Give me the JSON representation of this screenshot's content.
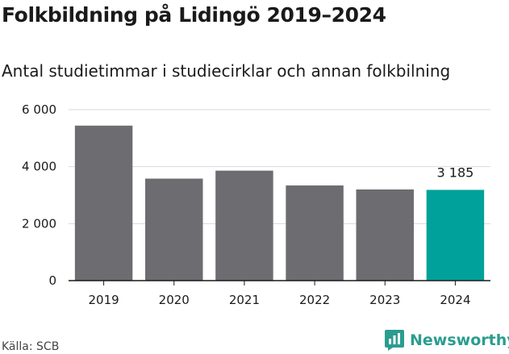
{
  "title": "Folkbildning på Lidingö 2019–2024",
  "subtitle": "Antal studietimmar i studiecirklar och annan folkbilning",
  "source": "Källa: SCB",
  "brand": {
    "name": "Newsworthy",
    "icon": "newsworthy-logo-icon"
  },
  "colors": {
    "bar": "#6d6c71",
    "highlight": "#00a19a",
    "grid": "#d9d9d9",
    "axis": "#1a1a1a"
  },
  "chart_data": {
    "type": "bar",
    "categories": [
      "2019",
      "2020",
      "2021",
      "2022",
      "2023",
      "2024"
    ],
    "values": [
      5440,
      3580,
      3860,
      3340,
      3200,
      3185
    ],
    "ylim": [
      0,
      6000
    ],
    "yticks": [
      0,
      2000,
      4000,
      6000
    ],
    "ytick_labels": [
      "0",
      "2 000",
      "4 000",
      "6 000"
    ],
    "highlight_index": 5,
    "data_labels": [
      {
        "index": 5,
        "text": "3 185"
      }
    ],
    "grid": true
  }
}
